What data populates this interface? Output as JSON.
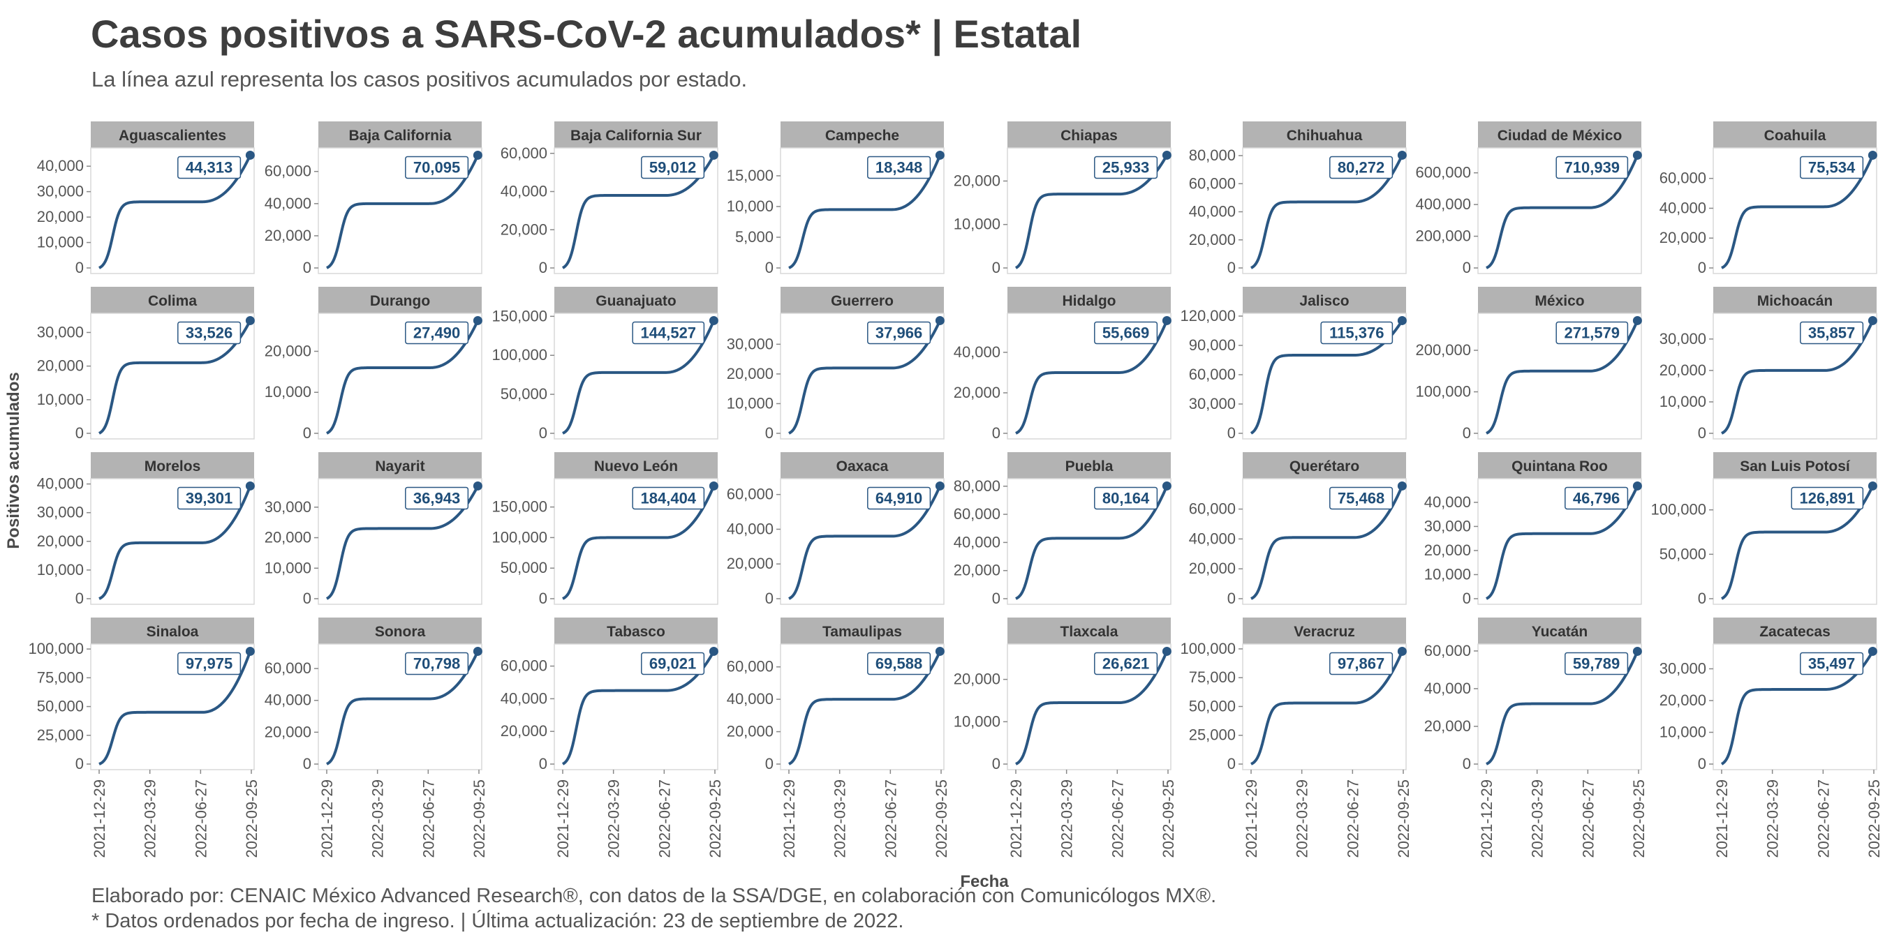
{
  "header": {
    "title": "Casos positivos a SARS-CoV-2 acumulados* | Estatal",
    "subtitle": "La línea azul representa los casos positivos acumulados por estado."
  },
  "footer": {
    "caption_line1": "Elaborado por: CENAIC México Advanced Research®, con datos de la SSA/DGE, en colaboración con Comunicólogos MX®.",
    "caption_line2": "* Datos ordenados por fecha de ingreso. | Última actualización: 23 de septiembre de 2022."
  },
  "colors": {
    "line": "#2a5783",
    "strip": "#b3b3b3",
    "panel_border": "#d9d9d9",
    "label_text": "#1f4e79"
  },
  "chart_data": {
    "type": "line",
    "layout": "small-multiples 4x8",
    "xlabel": "Fecha",
    "ylabel": "Positivos acumulados",
    "x_ticks": [
      "2021-12-29",
      "2022-03-29",
      "2022-06-27",
      "2022-09-25"
    ],
    "x_range": [
      "2021-12-29",
      "2022-09-23"
    ],
    "grid": false,
    "panels": [
      {
        "state": "Aguascalientes",
        "final": 44313,
        "label": "44,313",
        "plateau": 26000,
        "yticks": [
          "0",
          "10,000",
          "20,000",
          "30,000",
          "40,000"
        ],
        "ytick_values": [
          0,
          10000,
          20000,
          30000,
          40000
        ]
      },
      {
        "state": "Baja California",
        "final": 70095,
        "label": "70,095",
        "plateau": 40000,
        "yticks": [
          "0",
          "20,000",
          "40,000",
          "60,000"
        ],
        "ytick_values": [
          0,
          20000,
          40000,
          60000
        ]
      },
      {
        "state": "Baja California Sur",
        "final": 59012,
        "label": "59,012",
        "plateau": 38000,
        "yticks": [
          "0",
          "20,000",
          "40,000",
          "60,000"
        ],
        "ytick_values": [
          0,
          20000,
          40000,
          60000
        ]
      },
      {
        "state": "Campeche",
        "final": 18348,
        "label": "18,348",
        "plateau": 9500,
        "yticks": [
          "0",
          "5,000",
          "10,000",
          "15,000"
        ],
        "ytick_values": [
          0,
          5000,
          10000,
          15000
        ]
      },
      {
        "state": "Chiapas",
        "final": 25933,
        "label": "25,933",
        "plateau": 17000,
        "yticks": [
          "0",
          "10,000",
          "20,000"
        ],
        "ytick_values": [
          0,
          10000,
          20000
        ]
      },
      {
        "state": "Chihuahua",
        "final": 80272,
        "label": "80,272",
        "plateau": 47000,
        "yticks": [
          "0",
          "20,000",
          "40,000",
          "60,000",
          "80,000"
        ],
        "ytick_values": [
          0,
          20000,
          40000,
          60000,
          80000
        ]
      },
      {
        "state": "Ciudad de México",
        "final": 710939,
        "label": "710,939",
        "plateau": 380000,
        "yticks": [
          "0",
          "200,000",
          "400,000",
          "600,000"
        ],
        "ytick_values": [
          0,
          200000,
          400000,
          600000
        ]
      },
      {
        "state": "Coahuila",
        "final": 75534,
        "label": "75,534",
        "plateau": 41000,
        "yticks": [
          "0",
          "20,000",
          "40,000",
          "60,000"
        ],
        "ytick_values": [
          0,
          20000,
          40000,
          60000
        ]
      },
      {
        "state": "Colima",
        "final": 33526,
        "label": "33,526",
        "plateau": 21000,
        "yticks": [
          "0",
          "10,000",
          "20,000",
          "30,000"
        ],
        "ytick_values": [
          0,
          10000,
          20000,
          30000
        ]
      },
      {
        "state": "Durango",
        "final": 27490,
        "label": "27,490",
        "plateau": 16000,
        "yticks": [
          "0",
          "10,000",
          "20,000"
        ],
        "ytick_values": [
          0,
          10000,
          20000
        ]
      },
      {
        "state": "Guanajuato",
        "final": 144527,
        "label": "144,527",
        "plateau": 78000,
        "yticks": [
          "0",
          "50,000",
          "100,000",
          "150,000"
        ],
        "ytick_values": [
          0,
          50000,
          100000,
          150000
        ]
      },
      {
        "state": "Guerrero",
        "final": 37966,
        "label": "37,966",
        "plateau": 22000,
        "yticks": [
          "0",
          "10,000",
          "20,000",
          "30,000"
        ],
        "ytick_values": [
          0,
          10000,
          20000,
          30000
        ]
      },
      {
        "state": "Hidalgo",
        "final": 55669,
        "label": "55,669",
        "plateau": 30000,
        "yticks": [
          "0",
          "20,000",
          "40,000"
        ],
        "ytick_values": [
          0,
          20000,
          40000
        ]
      },
      {
        "state": "Jalisco",
        "final": 115376,
        "label": "115,376",
        "plateau": 80000,
        "yticks": [
          "0",
          "30,000",
          "60,000",
          "90,000",
          "120,000"
        ],
        "ytick_values": [
          0,
          30000,
          60000,
          90000,
          120000
        ]
      },
      {
        "state": "México",
        "final": 271579,
        "label": "271,579",
        "plateau": 150000,
        "yticks": [
          "0",
          "100,000",
          "200,000"
        ],
        "ytick_values": [
          0,
          100000,
          200000
        ]
      },
      {
        "state": "Michoacán",
        "final": 35857,
        "label": "35,857",
        "plateau": 20000,
        "yticks": [
          "0",
          "10,000",
          "20,000",
          "30,000"
        ],
        "ytick_values": [
          0,
          10000,
          20000,
          30000
        ]
      },
      {
        "state": "Morelos",
        "final": 39301,
        "label": "39,301",
        "plateau": 19500,
        "yticks": [
          "0",
          "10,000",
          "20,000",
          "30,000",
          "40,000"
        ],
        "ytick_values": [
          0,
          10000,
          20000,
          30000,
          40000
        ]
      },
      {
        "state": "Nayarit",
        "final": 36943,
        "label": "36,943",
        "plateau": 23000,
        "yticks": [
          "0",
          "10,000",
          "20,000",
          "30,000"
        ],
        "ytick_values": [
          0,
          10000,
          20000,
          30000
        ]
      },
      {
        "state": "Nuevo León",
        "final": 184404,
        "label": "184,404",
        "plateau": 100000,
        "yticks": [
          "0",
          "50,000",
          "100,000",
          "150,000"
        ],
        "ytick_values": [
          0,
          50000,
          100000,
          150000
        ]
      },
      {
        "state": "Oaxaca",
        "final": 64910,
        "label": "64,910",
        "plateau": 36000,
        "yticks": [
          "0",
          "20,000",
          "40,000",
          "60,000"
        ],
        "ytick_values": [
          0,
          20000,
          40000,
          60000
        ]
      },
      {
        "state": "Puebla",
        "final": 80164,
        "label": "80,164",
        "plateau": 43000,
        "yticks": [
          "0",
          "20,000",
          "40,000",
          "60,000",
          "80,000"
        ],
        "ytick_values": [
          0,
          20000,
          40000,
          60000,
          80000
        ]
      },
      {
        "state": "Querétaro",
        "final": 75468,
        "label": "75,468",
        "plateau": 41000,
        "yticks": [
          "0",
          "20,000",
          "40,000",
          "60,000"
        ],
        "ytick_values": [
          0,
          20000,
          40000,
          60000
        ]
      },
      {
        "state": "Quintana Roo",
        "final": 46796,
        "label": "46,796",
        "plateau": 27000,
        "yticks": [
          "0",
          "10,000",
          "20,000",
          "30,000",
          "40,000"
        ],
        "ytick_values": [
          0,
          10000,
          20000,
          30000,
          40000
        ]
      },
      {
        "state": "San Luis Potosí",
        "final": 126891,
        "label": "126,891",
        "plateau": 75000,
        "yticks": [
          "0",
          "50,000",
          "100,000"
        ],
        "ytick_values": [
          0,
          50000,
          100000
        ]
      },
      {
        "state": "Sinaloa",
        "final": 97975,
        "label": "97,975",
        "plateau": 45000,
        "yticks": [
          "0",
          "25,000",
          "50,000",
          "75,000",
          "100,000"
        ],
        "ytick_values": [
          0,
          25000,
          50000,
          75000,
          100000
        ]
      },
      {
        "state": "Sonora",
        "final": 70798,
        "label": "70,798",
        "plateau": 41000,
        "yticks": [
          "0",
          "20,000",
          "40,000",
          "60,000"
        ],
        "ytick_values": [
          0,
          20000,
          40000,
          60000
        ]
      },
      {
        "state": "Tabasco",
        "final": 69021,
        "label": "69,021",
        "plateau": 45000,
        "yticks": [
          "0",
          "20,000",
          "40,000",
          "60,000"
        ],
        "ytick_values": [
          0,
          20000,
          40000,
          60000
        ]
      },
      {
        "state": "Tamaulipas",
        "final": 69588,
        "label": "69,588",
        "plateau": 40000,
        "yticks": [
          "0",
          "20,000",
          "40,000",
          "60,000"
        ],
        "ytick_values": [
          0,
          20000,
          40000,
          60000
        ]
      },
      {
        "state": "Tlaxcala",
        "final": 26621,
        "label": "26,621",
        "plateau": 14500,
        "yticks": [
          "0",
          "10,000",
          "20,000"
        ],
        "ytick_values": [
          0,
          10000,
          20000
        ]
      },
      {
        "state": "Veracruz",
        "final": 97867,
        "label": "97,867",
        "plateau": 53000,
        "yticks": [
          "0",
          "25,000",
          "50,000",
          "75,000",
          "100,000"
        ],
        "ytick_values": [
          0,
          25000,
          50000,
          75000,
          100000
        ]
      },
      {
        "state": "Yucatán",
        "final": 59789,
        "label": "59,789",
        "plateau": 32000,
        "yticks": [
          "0",
          "20,000",
          "40,000",
          "60,000"
        ],
        "ytick_values": [
          0,
          20000,
          40000,
          60000
        ]
      },
      {
        "state": "Zacatecas",
        "final": 35497,
        "label": "35,497",
        "plateau": 23500,
        "yticks": [
          "0",
          "10,000",
          "20,000",
          "30,000"
        ],
        "ytick_values": [
          0,
          10000,
          20000,
          30000
        ]
      }
    ]
  }
}
